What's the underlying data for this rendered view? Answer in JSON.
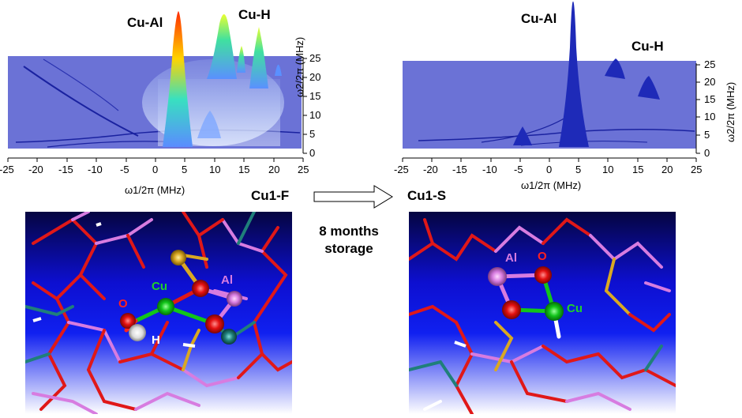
{
  "spectrum_left": {
    "peak_labels": [
      "Cu-Al",
      "Cu-H"
    ],
    "x_label": "ω1/2π (MHz)",
    "y_label": "ω2/2π (MHz)",
    "x_ticks": [
      "-25",
      "-20",
      "-15",
      "-10",
      "-5",
      "0",
      "5",
      "10",
      "15",
      "20",
      "25"
    ],
    "y_ticks": [
      "25",
      "20",
      "15",
      "10",
      "5",
      "0"
    ]
  },
  "spectrum_right": {
    "peak_labels": [
      "Cu-Al",
      "Cu-H"
    ],
    "x_label": "ω1/2π (MHz)",
    "y_label": "ω2/2π (MHz)",
    "x_ticks": [
      "-25",
      "-20",
      "-15",
      "-10",
      "-5",
      "0",
      "5",
      "10",
      "15",
      "20",
      "25"
    ],
    "y_ticks": [
      "25",
      "20",
      "15",
      "10",
      "5",
      "0"
    ]
  },
  "transition": {
    "from_label": "Cu1-F",
    "to_label": "Cu1-S",
    "caption_line1": "8 months",
    "caption_line2": "storage"
  },
  "structure_left": {
    "atom_labels": {
      "cu": "Cu",
      "al": "Al",
      "o": "O",
      "h": "H"
    }
  },
  "structure_right": {
    "atom_labels": {
      "al": "Al",
      "o": "O",
      "cu": "Cu"
    }
  },
  "colors": {
    "plane": "#6b72d6",
    "bond_red": "#e01818",
    "bond_pink": "#d77ce0",
    "bond_teal": "#1f7f7a",
    "cu_green": "#12c51a",
    "al_pink": "#d77ce0",
    "o_red": "#e31010",
    "label_green": "#1fd12a",
    "label_pink": "#d77ce0",
    "label_red": "#ff2020"
  }
}
